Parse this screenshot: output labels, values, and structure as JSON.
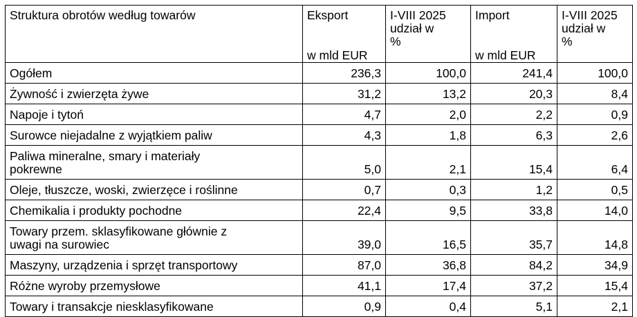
{
  "table": {
    "headers": {
      "category": "Struktura obrotów według towarów",
      "export_top": "Eksport",
      "export_unit": "w mld EUR",
      "export_share_line1": "I-VIII 2025",
      "export_share_line2": "udział w",
      "export_share_line3": "%",
      "import_top": "Import",
      "import_unit": "w mld EUR",
      "import_share_line1": "I-VIII 2025",
      "import_share_line2": "udział w",
      "import_share_line3": "%"
    },
    "rows": [
      {
        "label": [
          "Ogółem"
        ],
        "export": "236,3",
        "export_share": "100,0",
        "import": "241,4",
        "import_share": "100,0"
      },
      {
        "label": [
          "Żywność i zwierzęta żywe"
        ],
        "export": "31,2",
        "export_share": "13,2",
        "import": "20,3",
        "import_share": "8,4"
      },
      {
        "label": [
          "Napoje i tytoń"
        ],
        "export": "4,7",
        "export_share": "2,0",
        "import": "2,2",
        "import_share": "0,9"
      },
      {
        "label": [
          "Surowce niejadalne z wyjątkiem paliw"
        ],
        "export": "4,3",
        "export_share": "1,8",
        "import": "6,3",
        "import_share": "2,6"
      },
      {
        "label": [
          "Paliwa mineralne, smary i materiały",
          "pokrewne"
        ],
        "export": "5,0",
        "export_share": "2,1",
        "import": "15,4",
        "import_share": "6,4"
      },
      {
        "label": [
          "Oleje, tłuszcze, woski, zwierzęce i roślinne"
        ],
        "export": "0,7",
        "export_share": "0,3",
        "import": "1,2",
        "import_share": "0,5"
      },
      {
        "label": [
          "Chemikalia i produkty pochodne"
        ],
        "export": "22,4",
        "export_share": "9,5",
        "import": "33,8",
        "import_share": "14,0"
      },
      {
        "label": [
          "Towary przem. sklasyfikowane głównie z",
          "uwagi na surowiec"
        ],
        "export": "39,0",
        "export_share": "16,5",
        "import": "35,7",
        "import_share": "14,8"
      },
      {
        "label": [
          "Maszyny, urządzenia i sprzęt transportowy"
        ],
        "export": "87,0",
        "export_share": "36,8",
        "import": "84,2",
        "import_share": "34,9"
      },
      {
        "label": [
          "Różne wyroby przemysłowe"
        ],
        "export": "41,1",
        "export_share": "17,4",
        "import": "37,2",
        "import_share": "15,4"
      },
      {
        "label": [
          "Towary i transakcje niesklasyfikowane"
        ],
        "export": "0,9",
        "export_share": "0,4",
        "import": "5,1",
        "import_share": "2,1"
      }
    ]
  }
}
